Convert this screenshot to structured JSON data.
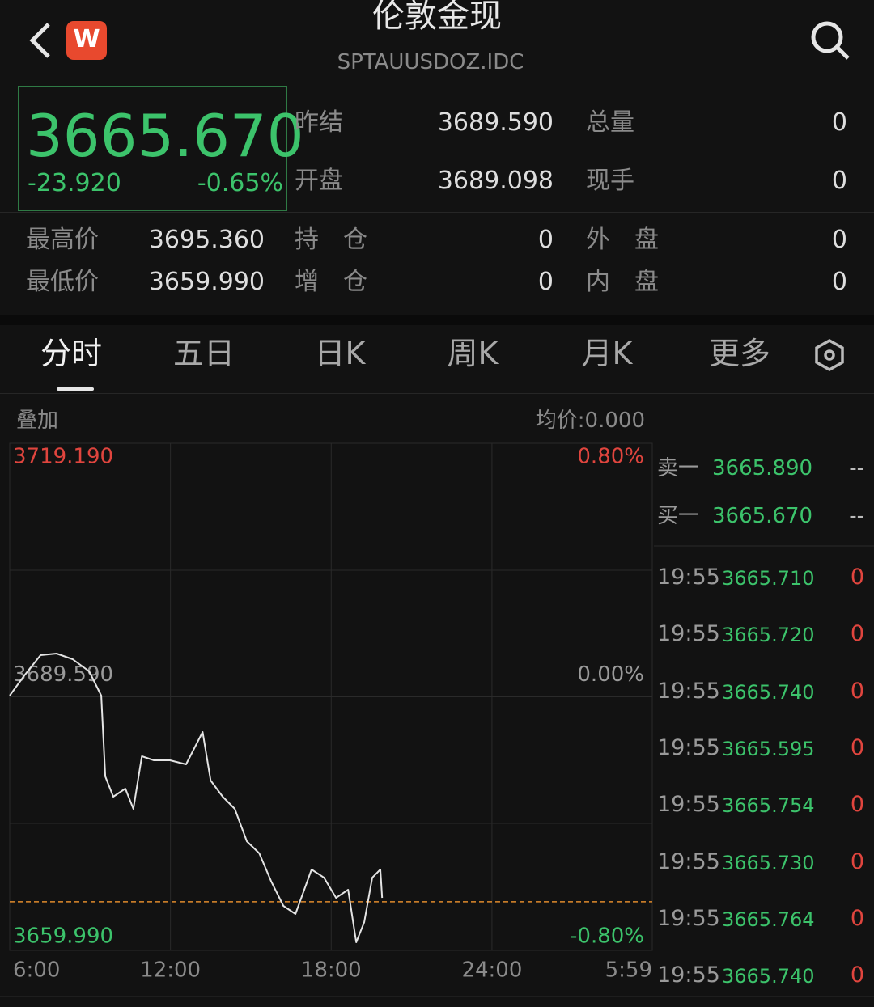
{
  "header": {
    "title": "伦敦金现",
    "subtitle": "SPTAUUSDOZ.IDC"
  },
  "quote": {
    "price": "3665.670",
    "change": "-23.920",
    "change_pct": "-0.65%"
  },
  "stats": {
    "prev_settle": {
      "label": "昨结",
      "value": "3689.590"
    },
    "total_volume": {
      "label": "总量",
      "value": "0"
    },
    "open": {
      "label": "开盘",
      "value": "3689.098"
    },
    "last_volume": {
      "label": "现手",
      "value": "0"
    },
    "high": {
      "label": "最高价",
      "value": "3695.360"
    },
    "open_interest": {
      "label": "持　仓",
      "value": "0"
    },
    "outer": {
      "label": "外　盘",
      "value": "0"
    },
    "low": {
      "label": "最低价",
      "value": "3659.990"
    },
    "oi_change": {
      "label": "增　仓",
      "value": "0"
    },
    "inner": {
      "label": "内　盘",
      "value": "0"
    }
  },
  "tabs": [
    "分时",
    "五日",
    "日K",
    "周K",
    "月K",
    "更多"
  ],
  "chart_header": {
    "overlay": "叠加",
    "avg": "均价:0.000"
  },
  "chart_data": {
    "type": "line",
    "x": [
      0,
      33,
      69,
      105,
      141,
      178,
      205,
      214,
      232,
      259,
      277,
      296,
      323,
      359,
      395,
      432,
      450,
      477,
      504,
      531,
      559,
      586,
      613,
      640,
      676,
      704,
      731,
      758,
      776,
      794,
      812,
      830,
      834
    ],
    "values": [
      3689.73,
      3692.09,
      3694.45,
      3694.64,
      3693.98,
      3692.56,
      3689.73,
      3680.29,
      3677.93,
      3678.87,
      3676.51,
      3682.65,
      3682.18,
      3682.18,
      3681.71,
      3685.48,
      3679.82,
      3677.93,
      3676.51,
      3672.73,
      3671.32,
      3668.01,
      3665.18,
      3664.24,
      3669.43,
      3668.48,
      3666.12,
      3667.07,
      3660.93,
      3663.29,
      3668.48,
      3669.43,
      3666.12
    ],
    "color": "#e4e4e4",
    "xlim": [
      0,
      1439
    ],
    "xticks": [
      {
        "value": 0,
        "label": "6:00"
      },
      {
        "value": 360,
        "label": "12:00"
      },
      {
        "value": 720,
        "label": "18:00"
      },
      {
        "value": 1080,
        "label": "24:00"
      },
      {
        "value": 1439,
        "label": "5:59"
      }
    ],
    "ylim": [
      3659.99,
      3719.19
    ],
    "yticks": [
      {
        "value": 3659.99,
        "label": "3659.990"
      },
      {
        "value": 3689.59,
        "label": "3689.590"
      },
      {
        "value": 3719.19,
        "label": "3719.190"
      }
    ],
    "ytick_colors": [
      "#3cc36b",
      "#9a9a9a",
      "#e0453e"
    ],
    "y2lim": [
      -0.8,
      0.8
    ],
    "y2ticks": [
      {
        "value": -0.8,
        "label": "-0.80%"
      },
      {
        "value": 0,
        "label": "0.00%"
      },
      {
        "value": 0.8,
        "label": "0.80%"
      }
    ],
    "last_line": {
      "value": 3665.67,
      "color": "#e08a2c"
    },
    "grid": true
  },
  "order_book": [
    {
      "label": "卖一",
      "price": "3665.890",
      "volume": "--"
    },
    {
      "label": "买一",
      "price": "3665.670",
      "volume": "--"
    }
  ],
  "trades": [
    {
      "time": "19:55",
      "price": "3665.710",
      "volume": "0"
    },
    {
      "time": "19:55",
      "price": "3665.720",
      "volume": "0"
    },
    {
      "time": "19:55",
      "price": "3665.740",
      "volume": "0"
    },
    {
      "time": "19:55",
      "price": "3665.595",
      "volume": "0"
    },
    {
      "time": "19:55",
      "price": "3665.754",
      "volume": "0"
    },
    {
      "time": "19:55",
      "price": "3665.730",
      "volume": "0"
    },
    {
      "time": "19:55",
      "price": "3665.764",
      "volume": "0"
    },
    {
      "time": "19:55",
      "price": "3665.740",
      "volume": "0"
    }
  ]
}
